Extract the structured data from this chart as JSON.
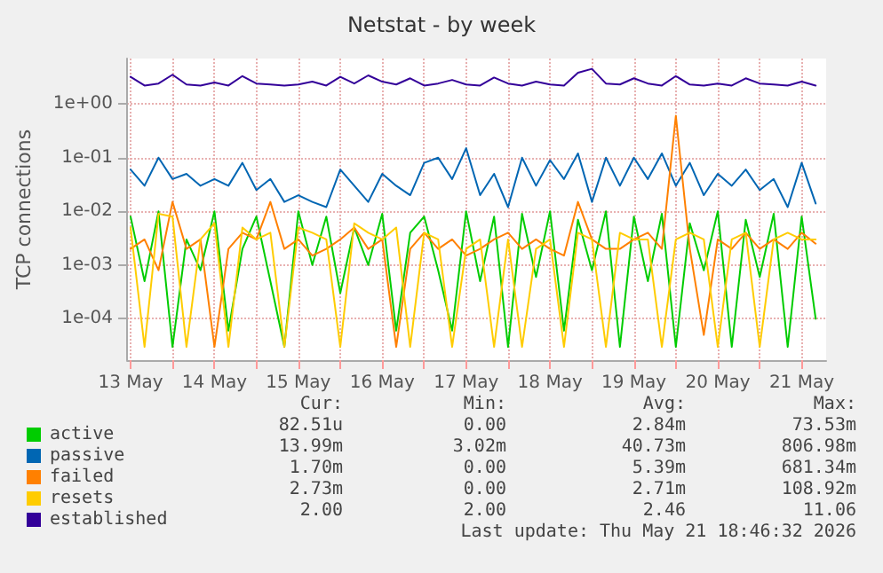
{
  "chart_data": {
    "type": "line",
    "title": "Netstat - by week",
    "ylabel": "TCP connections",
    "log": "y",
    "grid": true,
    "legend": "bottom left",
    "marker": "none",
    "line_style": "solid",
    "x": [
      "2026-05-13T12:00",
      "2026-05-13T16:00",
      "2026-05-13T20:00",
      "2026-05-14T00:00",
      "2026-05-14T04:00",
      "2026-05-14T08:00",
      "2026-05-14T12:00",
      "2026-05-14T16:00",
      "2026-05-14T20:00",
      "2026-05-15T00:00",
      "2026-05-15T04:00",
      "2026-05-15T08:00",
      "2026-05-15T12:00",
      "2026-05-15T16:00",
      "2026-05-15T20:00",
      "2026-05-16T00:00",
      "2026-05-16T04:00",
      "2026-05-16T08:00",
      "2026-05-16T12:00",
      "2026-05-16T16:00",
      "2026-05-16T20:00",
      "2026-05-17T00:00",
      "2026-05-17T04:00",
      "2026-05-17T08:00",
      "2026-05-17T12:00",
      "2026-05-17T16:00",
      "2026-05-17T20:00",
      "2026-05-18T00:00",
      "2026-05-18T04:00",
      "2026-05-18T08:00",
      "2026-05-18T12:00",
      "2026-05-18T16:00",
      "2026-05-18T20:00",
      "2026-05-19T00:00",
      "2026-05-19T04:00",
      "2026-05-19T08:00",
      "2026-05-19T12:00",
      "2026-05-19T16:00",
      "2026-05-19T20:00",
      "2026-05-20T00:00",
      "2026-05-20T04:00",
      "2026-05-20T08:00",
      "2026-05-20T12:00",
      "2026-05-20T16:00",
      "2026-05-20T20:00",
      "2026-05-21T00:00",
      "2026-05-21T04:00",
      "2026-05-21T08:00",
      "2026-05-21T12:00",
      "2026-05-21T16:00"
    ],
    "xlim": [
      "2026-05-13T11:00",
      "2026-05-21T19:00"
    ],
    "xticks": [
      {
        "value": "2026-05-13T12:00",
        "label": "13 May"
      },
      {
        "value": "2026-05-14T00:00",
        "label": null
      },
      {
        "value": "2026-05-14T12:00",
        "label": "14 May"
      },
      {
        "value": "2026-05-15T00:00",
        "label": null
      },
      {
        "value": "2026-05-15T12:00",
        "label": "15 May"
      },
      {
        "value": "2026-05-16T00:00",
        "label": null
      },
      {
        "value": "2026-05-16T12:00",
        "label": "16 May"
      },
      {
        "value": "2026-05-17T00:00",
        "label": null
      },
      {
        "value": "2026-05-17T12:00",
        "label": "17 May"
      },
      {
        "value": "2026-05-18T00:00",
        "label": null
      },
      {
        "value": "2026-05-18T12:00",
        "label": "18 May"
      },
      {
        "value": "2026-05-19T00:00",
        "label": null
      },
      {
        "value": "2026-05-19T12:00",
        "label": "19 May"
      },
      {
        "value": "2026-05-20T00:00",
        "label": null
      },
      {
        "value": "2026-05-20T12:00",
        "label": "20 May"
      },
      {
        "value": "2026-05-21T00:00",
        "label": null
      },
      {
        "value": "2026-05-21T12:00",
        "label": "21 May"
      }
    ],
    "ylim": [
      1.7e-05,
      7
    ],
    "yticks": [
      {
        "value": 0.0001,
        "label": "1e-04"
      },
      {
        "value": 0.001,
        "label": "1e-03"
      },
      {
        "value": 0.01,
        "label": "1e-02"
      },
      {
        "value": 0.1,
        "label": "1e-01"
      },
      {
        "value": 1,
        "label": "1e+00"
      }
    ],
    "series": [
      {
        "name": "active",
        "color": "#00cc00",
        "values": [
          0.008,
          0.0005,
          0.01,
          3e-05,
          0.003,
          0.0008,
          0.01,
          6e-05,
          0.002,
          0.008,
          0.0005,
          3e-05,
          0.01,
          0.001,
          0.008,
          0.0003,
          0.005,
          0.001,
          0.009,
          6e-05,
          0.004,
          0.008,
          0.0008,
          6e-05,
          0.01,
          0.0005,
          0.008,
          3e-05,
          0.009,
          0.0006,
          0.01,
          6e-05,
          0.007,
          0.0008,
          0.01,
          3e-05,
          0.008,
          0.0005,
          0.009,
          3e-05,
          0.006,
          0.0008,
          0.01,
          3e-05,
          0.007,
          0.0006,
          0.009,
          3e-05,
          0.008,
          0.0001
        ]
      },
      {
        "name": "passive",
        "color": "#0066b3",
        "values": [
          0.06,
          0.03,
          0.1,
          0.04,
          0.05,
          0.03,
          0.04,
          0.03,
          0.08,
          0.025,
          0.04,
          0.015,
          0.02,
          0.015,
          0.012,
          0.06,
          0.03,
          0.015,
          0.05,
          0.03,
          0.02,
          0.08,
          0.1,
          0.04,
          0.15,
          0.02,
          0.05,
          0.012,
          0.1,
          0.03,
          0.09,
          0.04,
          0.12,
          0.015,
          0.1,
          0.03,
          0.1,
          0.04,
          0.12,
          0.03,
          0.08,
          0.02,
          0.05,
          0.03,
          0.06,
          0.025,
          0.04,
          0.012,
          0.08,
          0.014
        ]
      },
      {
        "name": "failed",
        "color": "#ff8000",
        "values": [
          0.002,
          0.003,
          0.0008,
          0.015,
          0.002,
          0.003,
          3e-05,
          0.002,
          0.004,
          0.003,
          0.015,
          0.002,
          0.003,
          0.0015,
          0.002,
          0.003,
          0.005,
          0.002,
          0.003,
          3e-05,
          0.002,
          0.004,
          0.002,
          0.003,
          0.0015,
          0.002,
          0.003,
          0.004,
          0.002,
          0.003,
          0.002,
          0.0015,
          0.015,
          0.003,
          0.002,
          0.002,
          0.003,
          0.004,
          0.002,
          0.6,
          0.002,
          5e-05,
          0.003,
          0.002,
          0.004,
          0.002,
          0.003,
          0.002,
          0.004,
          0.0025
        ]
      },
      {
        "name": "resets",
        "color": "#ffcc00",
        "values": [
          0.005,
          3e-05,
          0.009,
          0.008,
          3e-05,
          0.003,
          0.006,
          3e-05,
          0.005,
          0.003,
          0.004,
          3e-05,
          0.005,
          0.004,
          0.003,
          3e-05,
          0.006,
          0.004,
          0.003,
          0.005,
          3e-05,
          0.004,
          0.003,
          3e-05,
          0.002,
          0.003,
          3e-05,
          0.003,
          3e-05,
          0.002,
          0.003,
          3e-05,
          0.004,
          0.003,
          3e-05,
          0.004,
          0.003,
          0.003,
          3e-05,
          0.003,
          0.004,
          0.003,
          3e-05,
          0.003,
          0.004,
          3e-05,
          0.003,
          0.004,
          0.003,
          0.003
        ]
      },
      {
        "name": "established",
        "color": "#330099",
        "values": [
          3.2,
          2.2,
          2.4,
          3.5,
          2.3,
          2.2,
          2.5,
          2.2,
          3.3,
          2.4,
          2.3,
          2.2,
          2.3,
          2.6,
          2.2,
          3.2,
          2.4,
          3.4,
          2.6,
          2.3,
          3.0,
          2.2,
          2.4,
          2.8,
          2.3,
          2.2,
          3.1,
          2.4,
          2.2,
          2.6,
          2.3,
          2.2,
          3.8,
          4.5,
          2.4,
          2.3,
          3.0,
          2.4,
          2.2,
          3.3,
          2.3,
          2.2,
          2.4,
          2.2,
          3.0,
          2.4,
          2.3,
          2.2,
          2.6,
          2.2
        ]
      }
    ],
    "annotations": [
      "Cur:",
      "Min:",
      "Avg:",
      "Max:",
      "82.51u",
      "0.00",
      "2.84m",
      "73.53m",
      "13.99m",
      "3.02m",
      "40.73m",
      "806.98m",
      "1.70m",
      "0.00",
      "5.39m",
      "681.34m",
      "2.73m",
      "0.00",
      "2.71m",
      "108.92m",
      "2.00",
      "2.00",
      "2.46",
      "11.06",
      "Last update: Thu May 21 18:46:32 2026"
    ]
  }
}
